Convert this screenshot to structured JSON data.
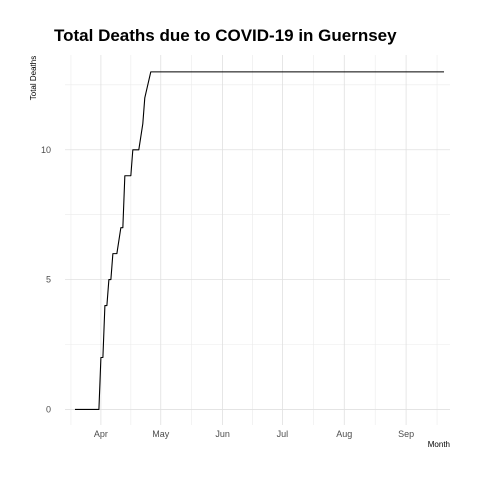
{
  "chart_data": {
    "type": "line",
    "title": "Total Deaths due to COVID-19 in Guernsey",
    "xlabel": "Month",
    "ylabel": "Total Deaths",
    "x_ticks": [
      "Apr",
      "May",
      "Jun",
      "Jul",
      "Aug",
      "Sep"
    ],
    "y_ticks": [
      0,
      5,
      10
    ],
    "xlim": [
      "2020-03-14",
      "2020-09-23"
    ],
    "ylim": [
      -0.6,
      13.65
    ],
    "grid": true,
    "legend": "none",
    "line_color": "#000000",
    "series": [
      {
        "x": [
          "2020-03-19",
          "2020-03-31",
          "2020-04-01",
          "2020-04-02",
          "2020-04-03",
          "2020-04-04",
          "2020-04-05",
          "2020-04-06",
          "2020-04-07",
          "2020-04-08",
          "2020-04-09",
          "2020-04-11",
          "2020-04-12",
          "2020-04-13",
          "2020-04-14",
          "2020-04-16",
          "2020-04-17",
          "2020-04-19",
          "2020-04-20",
          "2020-04-22",
          "2020-04-23",
          "2020-04-26",
          "2020-09-20"
        ],
        "y": [
          0,
          0,
          2,
          2,
          4,
          4,
          5,
          5,
          6,
          6,
          6,
          7,
          7,
          9,
          9,
          9,
          10,
          10,
          10,
          11,
          12,
          13,
          13
        ]
      }
    ]
  }
}
